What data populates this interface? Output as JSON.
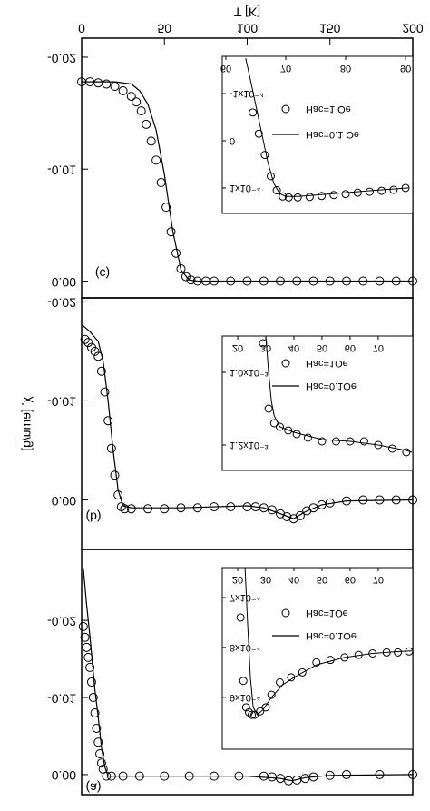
{
  "chart_data": [
    {
      "type": "line",
      "panel_label": "(c)",
      "x_label": "T [K]",
      "xlim": [
        0,
        200
      ],
      "xticks": [
        0,
        50,
        100,
        150,
        200
      ],
      "ylim": [
        0.0015,
        -0.0217
      ],
      "yticks": [
        {
          "value": -0.02,
          "label": "-0.02"
        },
        {
          "value": -0.01,
          "label": "-0.01"
        },
        {
          "value": 0,
          "label": "0.00"
        }
      ],
      "series": [
        {
          "name": "Hac=1 Oe",
          "mode": "markers",
          "color": "#000000",
          "x": [
            0,
            5,
            10,
            15,
            20,
            25,
            30,
            33,
            36,
            39,
            42,
            45,
            48,
            51,
            54,
            57,
            60,
            63,
            66,
            70,
            75,
            80,
            90,
            100,
            110,
            120,
            130,
            140,
            150,
            160,
            170,
            180,
            190,
            200
          ],
          "values": [
            -0.0178,
            -0.0178,
            -0.0177,
            -0.0176,
            -0.0174,
            -0.017,
            -0.0165,
            -0.016,
            -0.0152,
            -0.014,
            -0.0125,
            -0.0108,
            -0.0088,
            -0.0066,
            -0.0044,
            -0.0025,
            -0.0011,
            -0.0004,
            -0.0001,
            0,
            0,
            0,
            0,
            0,
            0,
            0,
            0,
            0,
            0,
            0,
            0,
            0,
            0,
            0
          ]
        },
        {
          "name": "Hac=0.1 Oe",
          "mode": "lines",
          "color": "#000000",
          "x": [
            0,
            10,
            20,
            30,
            35,
            40,
            45,
            50,
            55,
            60,
            65,
            70,
            200
          ],
          "values": [
            -0.0178,
            -0.0178,
            -0.0178,
            -0.0176,
            -0.017,
            -0.0158,
            -0.0135,
            -0.0095,
            -0.0045,
            -0.001,
            -0.0001,
            0,
            0
          ]
        }
      ],
      "inset": {
        "xlim": [
          59.4,
          91.2
        ],
        "xticks": [
          60,
          70,
          80,
          90
        ],
        "ylim": [
          0.000154,
          -0.000179
        ],
        "yticks": [
          {
            "value": -0.0001,
            "label": "-1x10⁻⁴"
          },
          0,
          {
            "value": 0.0001,
            "label": "1x10⁻⁴"
          }
        ],
        "series": [
          {
            "name": "Hac=1 Oe",
            "mode": "markers",
            "color": "#000000",
            "x": [
              64.5,
              65.5,
              66.5,
              67.5,
              68.5,
              69.5,
              70.5,
              72,
              74,
              76,
              78,
              80,
              82,
              84,
              86,
              88,
              90
            ],
            "values": [
              -6e-05,
              -1.5e-05,
              3e-05,
              7.5e-05,
              0.000105,
              0.000118,
              0.00012,
              0.00012,
              0.000119,
              0.000117,
              0.000115,
              0.000113,
              0.00011,
              0.000108,
              0.000106,
              0.000104,
              0.0001
            ]
          },
          {
            "name": "Hac=0.1 Oe",
            "mode": "lines",
            "color": "#000000",
            "x": [
              63.3,
              64,
              65,
              66,
              67,
              68,
              69,
              70,
              72,
              76,
              80,
              85,
              90.5
            ],
            "values": [
              -0.000175,
              -0.000135,
              -7.5e-05,
              -1.5e-05,
              4.5e-05,
              9e-05,
              0.000112,
              0.000118,
              0.000118,
              0.000114,
              0.00011,
              0.000105,
              0.0001
            ]
          }
        ]
      }
    },
    {
      "type": "line",
      "panel_label": "(b)",
      "y_label": "χ' [emu/g]",
      "xlim": [
        0,
        200
      ],
      "ylim": [
        0.005,
        -0.0204
      ],
      "yticks": [
        {
          "value": -0.02,
          "label": "-0.02"
        },
        {
          "value": -0.01,
          "label": "-0.01"
        },
        {
          "value": 0,
          "label": "0.00"
        }
      ],
      "series": [
        {
          "name": "Hac=1 Oe",
          "mode": "markers",
          "color": "#000000",
          "x": [
            2,
            4,
            6,
            8,
            10,
            12,
            14,
            16,
            18,
            20,
            22,
            24,
            26,
            30,
            40,
            50,
            60,
            70,
            80,
            90,
            100,
            105,
            110,
            115,
            120,
            124,
            128,
            132,
            136,
            140,
            145,
            150,
            160,
            170,
            180,
            190,
            200
          ],
          "values": [
            -0.0162,
            -0.0159,
            -0.0154,
            -0.015,
            -0.0145,
            -0.013,
            -0.0109,
            -0.008,
            -0.0052,
            -0.0025,
            -0.0005,
            0.0007,
            0.0009,
            0.0009,
            0.0009,
            0.0009,
            0.0008,
            0.0008,
            0.0007,
            0.0007,
            0.0007,
            0.0007,
            0.0008,
            0.001,
            0.0014,
            0.0017,
            0.0019,
            0.0016,
            0.0011,
            0.0008,
            0.0005,
            0.0003,
            0.0001,
            0,
            0,
            0,
            0
          ]
        },
        {
          "name": "Hac=0.1 Oe",
          "mode": "lines",
          "color": "#000000",
          "x": [
            0,
            5,
            10,
            13,
            16,
            19,
            22,
            25,
            30,
            60,
            100,
            110,
            120,
            128,
            135,
            145,
            160,
            200
          ],
          "values": [
            -0.0177,
            -0.017,
            -0.016,
            -0.014,
            -0.01,
            -0.005,
            -0.001,
            0.0006,
            0.0008,
            0.0008,
            0.0006,
            0.0008,
            0.0014,
            0.0019,
            0.0012,
            0.0005,
            0.0001,
            0
          ]
        }
      ],
      "inset": {
        "xlim": [
          14.5,
          82.3
        ],
        "xticks": [
          20,
          30,
          40,
          50,
          60,
          70
        ],
        "ylim": [
          0.00127,
          0.0009
        ],
        "yticks": [
          {
            "value": 0.001,
            "label": "1.0x10⁻³"
          },
          {
            "value": 0.0012,
            "label": "1.2x10⁻³"
          }
        ],
        "series": [
          {
            "name": "Hac=1Oe",
            "mode": "markers",
            "color": "#000000",
            "x": [
              29,
              31,
              33,
              35,
              38,
              41,
              45,
              50,
              55,
              60,
              65,
              70,
              75,
              80
            ],
            "values": [
              0.00092,
              0.0011,
              0.00114,
              0.00115,
              0.00116,
              0.00117,
              0.00118,
              0.00119,
              0.00119,
              0.00119,
              0.00119,
              0.0012,
              0.00121,
              0.00122
            ]
          },
          {
            "name": "Hac=0.1Oe",
            "mode": "lines",
            "color": "#000000",
            "x": [
              30,
              31,
              32,
              33,
              35,
              40,
              50,
              60,
              70,
              80,
              82
            ],
            "values": [
              0.0009,
              0.001,
              0.00108,
              0.00112,
              0.00115,
              0.001165,
              0.001185,
              0.00119,
              0.0012,
              0.001215,
              0.00122
            ]
          }
        ]
      }
    },
    {
      "type": "line",
      "panel_label": "(a)",
      "xlim": [
        0,
        200
      ],
      "ylim": [
        0.0026,
        -0.0292
      ],
      "yticks": [
        {
          "value": -0.02,
          "label": "-0.02"
        },
        {
          "value": -0.01,
          "label": "-0.01"
        },
        {
          "value": 0,
          "label": "0.00"
        }
      ],
      "series": [
        {
          "name": "Hac=1Oe",
          "mode": "markers",
          "color": "#000000",
          "x": [
            1,
            2,
            3,
            4,
            5,
            6,
            7,
            8,
            9,
            10,
            11,
            12,
            13,
            15,
            18,
            25,
            35,
            50,
            65,
            80,
            95,
            110,
            115,
            120,
            125,
            130,
            135,
            140,
            150,
            160,
            180,
            200
          ],
          "values": [
            -0.0192,
            -0.0178,
            -0.0165,
            -0.0152,
            -0.0139,
            -0.012,
            -0.01,
            -0.008,
            -0.006,
            -0.0042,
            -0.0027,
            -0.0015,
            -0.0007,
            0.0002,
            0.0002,
            0.0002,
            0.0002,
            0.0002,
            0.0002,
            0.0002,
            0.0002,
            0.0002,
            0.0003,
            0.0005,
            0.0008,
            0.0007,
            0.0005,
            0.0003,
            0.0001,
            0,
            0,
            0
          ]
        },
        {
          "name": "Hac=0.1Oe",
          "mode": "lines",
          "color": "#000000",
          "x": [
            1,
            3,
            5,
            8,
            10,
            12,
            14,
            16,
            20,
            50,
            100,
            120,
            127,
            135,
            150,
            200
          ],
          "values": [
            -0.0268,
            -0.022,
            -0.018,
            -0.011,
            -0.0074,
            -0.0035,
            -0.001,
            0.0002,
            0.0002,
            0.0002,
            0.0002,
            0.0005,
            0.0008,
            0.0004,
            0.0001,
            0
          ]
        }
      ],
      "inset": {
        "xlim": [
          14.5,
          82.3
        ],
        "xticks": [
          20,
          30,
          40,
          50,
          60,
          70
        ],
        "ylim": [
          0.001004,
          0.00064
        ],
        "yticks": [
          {
            "value": 0.0007,
            "label": "7x10⁻⁴"
          },
          {
            "value": 0.0008,
            "label": "8x10⁻⁴"
          },
          {
            "value": 0.0009,
            "label": "9x10⁻⁴"
          }
        ],
        "series": [
          {
            "name": "Hac=1Oe",
            "mode": "markers",
            "color": "#000000",
            "x": [
              21,
              22,
              23,
              24,
              25,
              26,
              28,
              30,
              32,
              35,
              39,
              43,
              48,
              53,
              58,
              63,
              68,
              73,
              77,
              81
            ],
            "values": [
              0.00074,
              0.000867,
              0.00092,
              0.00093,
              0.000935,
              0.000935,
              0.000928,
              0.00092,
              0.000895,
              0.00087,
              0.00086,
              0.00085,
              0.00083,
              0.000825,
              0.00082,
              0.000815,
              0.000812,
              0.00081,
              0.00081,
              0.000808
            ]
          },
          {
            "name": "Hac=0.1Oe",
            "mode": "lines",
            "color": "#000000",
            "x": [
              22.6,
              23.5,
              24.5,
              25.5,
              27,
              29,
              32,
              36,
              40,
              48,
              58,
              68,
              78,
              82
            ],
            "values": [
              0.00064,
              0.00075,
              0.00086,
              0.00092,
              0.000935,
              0.000925,
              0.0009,
              0.000875,
              0.00086,
              0.000835,
              0.00082,
              0.000812,
              0.000808,
              0.000807
            ]
          }
        ]
      }
    }
  ]
}
